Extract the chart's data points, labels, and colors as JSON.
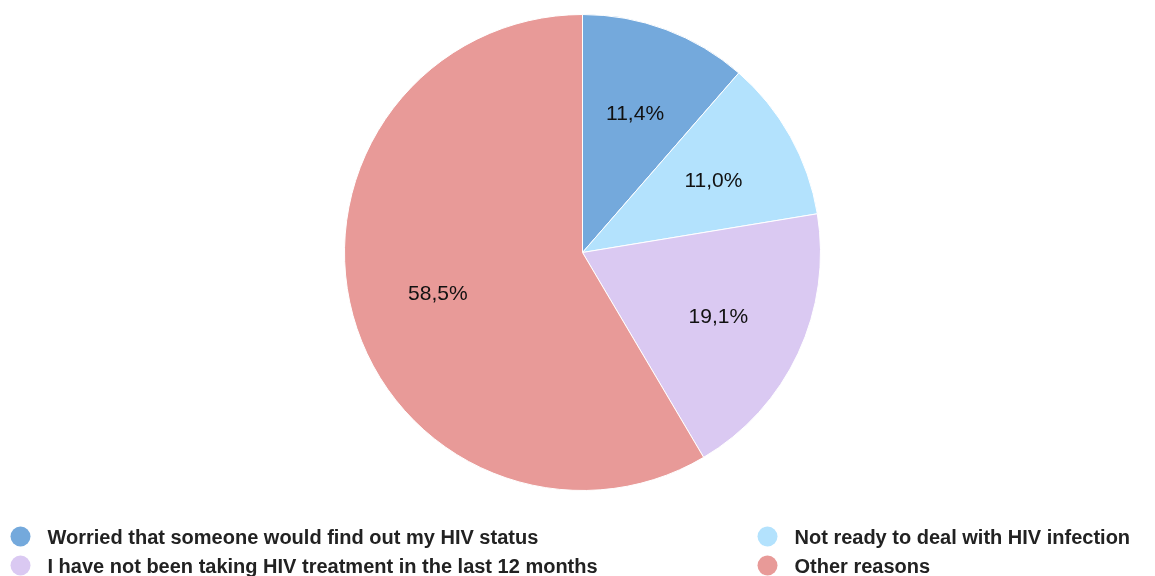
{
  "chart_data": {
    "type": "pie",
    "categories": [
      "Worried that someone would find out my HIV status",
      "Not ready to deal with HIV infection",
      "I have not been taking HIV treatment in the last 12 months",
      "Other reasons"
    ],
    "values": [
      11.4,
      11.0,
      19.1,
      58.5
    ],
    "value_labels": [
      "11,4%",
      "11,0%",
      "19,1%",
      "58,5%"
    ],
    "colors": [
      "#74a9dc",
      "#b3e2fd",
      "#dac9f2",
      "#e89a98"
    ],
    "legend": "bottom"
  }
}
